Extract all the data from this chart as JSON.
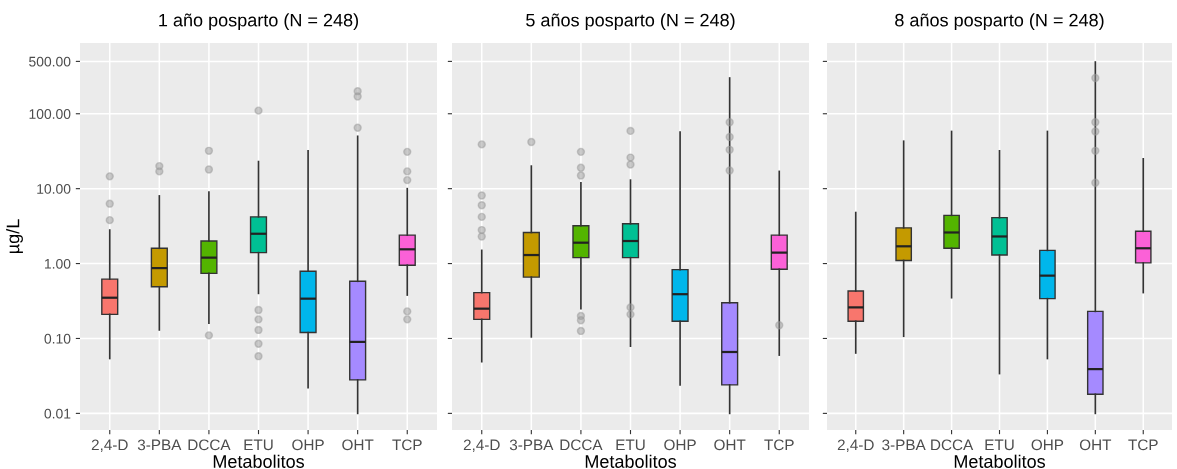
{
  "chart_data": [
    {
      "type": "box",
      "title": "1 año posparto (N = 248)",
      "xlabel": "Metabolitos",
      "ylabel": "µg/L",
      "log": "y",
      "grid": true,
      "ylim": [
        0.006,
        880
      ],
      "yticks": [
        0.01,
        {
          "value": 0.1,
          "label": "0.10"
        },
        {
          "value": 1,
          "label": "1.00"
        },
        {
          "value": 10,
          "label": "10.00"
        },
        {
          "value": 100,
          "label": "100.00"
        },
        {
          "value": 500,
          "label": "500.00"
        }
      ],
      "categories": [
        "2,4-D",
        "3-PBA",
        "DCCA",
        "ETU",
        "OHP",
        "OHT",
        "TCP"
      ],
      "colors": [
        "#f8766d",
        "#c49a00",
        "#53b400",
        "#00c094",
        "#00b6eb",
        "#a58aff",
        "#fb61d7"
      ],
      "boxes": [
        {
          "low": 0.054,
          "q1": 0.21,
          "median": 0.35,
          "q3": 0.62,
          "high": 2.8,
          "outliers": [
            14.6,
            6.3,
            3.8
          ]
        },
        {
          "low": 0.13,
          "q1": 0.49,
          "median": 0.87,
          "q3": 1.6,
          "high": 8,
          "outliers": [
            20,
            17
          ]
        },
        {
          "low": 0.16,
          "q1": 0.74,
          "median": 1.2,
          "q3": 2,
          "high": 9,
          "outliers": [
            32,
            18,
            0.11
          ]
        },
        {
          "low": 0.4,
          "q1": 1.4,
          "median": 2.5,
          "q3": 4.2,
          "high": 23,
          "outliers": [
            110,
            0.24,
            0.18,
            0.13,
            0.085,
            0.058
          ]
        },
        {
          "low": 0.022,
          "q1": 0.12,
          "median": 0.34,
          "q3": 0.79,
          "high": 32
        },
        {
          "low": 0.01,
          "q1": 0.028,
          "median": 0.09,
          "q3": 0.58,
          "high": 50,
          "outliers": [
            200,
            170,
            65
          ]
        },
        {
          "low": 0.38,
          "q1": 0.95,
          "median": 1.55,
          "q3": 2.4,
          "high": 10,
          "outliers": [
            31,
            17,
            13,
            0.23,
            0.18
          ]
        }
      ]
    },
    {
      "type": "box",
      "title": "5 años posparto (N = 248)",
      "xlabel": "Metabolitos",
      "log": "y",
      "grid": true,
      "tick_labels": "x",
      "ylim": [
        0.006,
        880
      ],
      "yticks": [
        {
          "value": 0.01,
          "label": null
        },
        {
          "value": 0.1,
          "label": null
        },
        {
          "value": 1,
          "label": null
        },
        {
          "value": 10,
          "label": null
        },
        {
          "value": 100,
          "label": null
        },
        {
          "value": 500,
          "label": null
        }
      ],
      "categories": [
        "2,4-D",
        "3-PBA",
        "DCCA",
        "ETU",
        "OHP",
        "OHT",
        "TCP"
      ],
      "colors": [
        "#f8766d",
        "#c49a00",
        "#53b400",
        "#00c094",
        "#00b6eb",
        "#a58aff",
        "#fb61d7"
      ],
      "boxes": [
        {
          "low": 0.049,
          "q1": 0.18,
          "median": 0.25,
          "q3": 0.41,
          "high": 1.5,
          "outliers": [
            39,
            8.1,
            6,
            4.2,
            2.8,
            2.3
          ]
        },
        {
          "low": 0.105,
          "q1": 0.66,
          "median": 1.3,
          "q3": 2.6,
          "high": 20,
          "outliers": [
            42
          ]
        },
        {
          "low": 0.25,
          "q1": 1.2,
          "median": 1.9,
          "q3": 3.2,
          "high": 12,
          "outliers": [
            31,
            19,
            15,
            0.2,
            0.175,
            0.126
          ]
        },
        {
          "low": 0.079,
          "q1": 1.2,
          "median": 2,
          "q3": 3.4,
          "high": 13,
          "outliers": [
            59,
            26,
            21,
            0.26,
            0.21
          ]
        },
        {
          "low": 0.024,
          "q1": 0.17,
          "median": 0.39,
          "q3": 0.83,
          "high": 57
        },
        {
          "low": 0.01,
          "q1": 0.024,
          "median": 0.066,
          "q3": 0.3,
          "high": 300,
          "outliers": [
            77,
            49,
            33,
            17.5
          ]
        },
        {
          "low": 0.06,
          "q1": 0.84,
          "median": 1.4,
          "q3": 2.4,
          "high": 17,
          "outliers": [
            0.15
          ]
        }
      ]
    },
    {
      "type": "box",
      "title": "8 años posparto (N = 248)",
      "xlabel": "Metabolitos",
      "log": "y",
      "grid": true,
      "tick_labels": "x",
      "ylim": [
        0.006,
        880
      ],
      "yticks": [
        {
          "value": 0.01,
          "label": null
        },
        {
          "value": 0.1,
          "label": null
        },
        {
          "value": 1,
          "label": null
        },
        {
          "value": 10,
          "label": null
        },
        {
          "value": 100,
          "label": null
        },
        {
          "value": 500,
          "label": null
        }
      ],
      "categories": [
        "2,4-D",
        "3-PBA",
        "DCCA",
        "ETU",
        "OHP",
        "OHT",
        "TCP"
      ],
      "colors": [
        "#f8766d",
        "#c49a00",
        "#53b400",
        "#00c094",
        "#00b6eb",
        "#a58aff",
        "#fb61d7"
      ],
      "boxes": [
        {
          "low": 0.064,
          "q1": 0.17,
          "median": 0.26,
          "q3": 0.43,
          "high": 4.8
        },
        {
          "low": 0.107,
          "q1": 1.1,
          "median": 1.7,
          "q3": 3,
          "high": 43
        },
        {
          "low": 0.35,
          "q1": 1.6,
          "median": 2.6,
          "q3": 4.4,
          "high": 58
        },
        {
          "low": 0.034,
          "q1": 1.3,
          "median": 2.3,
          "q3": 4.1,
          "high": 32
        },
        {
          "low": 0.054,
          "q1": 0.34,
          "median": 0.69,
          "q3": 1.5,
          "high": 58
        },
        {
          "low": 0.01,
          "q1": 0.018,
          "median": 0.039,
          "q3": 0.23,
          "high": 490,
          "outliers": [
            300,
            77,
            58,
            32,
            12
          ]
        },
        {
          "low": 0.41,
          "q1": 1.02,
          "median": 1.6,
          "q3": 2.7,
          "high": 25
        }
      ]
    }
  ]
}
